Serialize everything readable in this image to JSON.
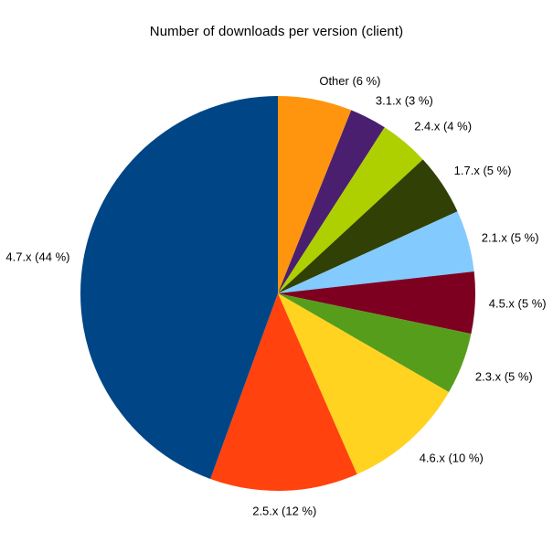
{
  "chart_data": {
    "type": "pie",
    "title": "Number of downloads per version (client)",
    "unit": "%",
    "slices": [
      {
        "label": "Other",
        "value": 6,
        "display": "Other (6 %)",
        "color": "#FF950E"
      },
      {
        "label": "3.1.x",
        "value": 3,
        "display": "3.1.x (3 %)",
        "color": "#4B1F6F"
      },
      {
        "label": "2.4.x",
        "value": 4,
        "display": "2.4.x (4 %)",
        "color": "#AECF00"
      },
      {
        "label": "1.7.x",
        "value": 5,
        "display": "1.7.x (5 %)",
        "color": "#314004"
      },
      {
        "label": "2.1.x",
        "value": 5,
        "display": "2.1.x (5 %)",
        "color": "#83CAFF"
      },
      {
        "label": "4.5.x",
        "value": 5,
        "display": "4.5.x (5 %)",
        "color": "#7E0021"
      },
      {
        "label": "2.3.x",
        "value": 5,
        "display": "2.3.x (5 %)",
        "color": "#579D1C"
      },
      {
        "label": "4.6.x",
        "value": 10,
        "display": "4.6.x (10 %)",
        "color": "#FFD320"
      },
      {
        "label": "2.5.x",
        "value": 12,
        "display": "2.5.x (12 %)",
        "color": "#FF420E"
      },
      {
        "label": "4.7.x",
        "value": 44,
        "display": "4.7.x (44 %)",
        "color": "#004586"
      }
    ],
    "layout": {
      "direction": "clockwise",
      "start_at": "top",
      "legend": "none",
      "labels": "outside",
      "background": "#FFFFFF",
      "label_color": "#000000"
    }
  }
}
